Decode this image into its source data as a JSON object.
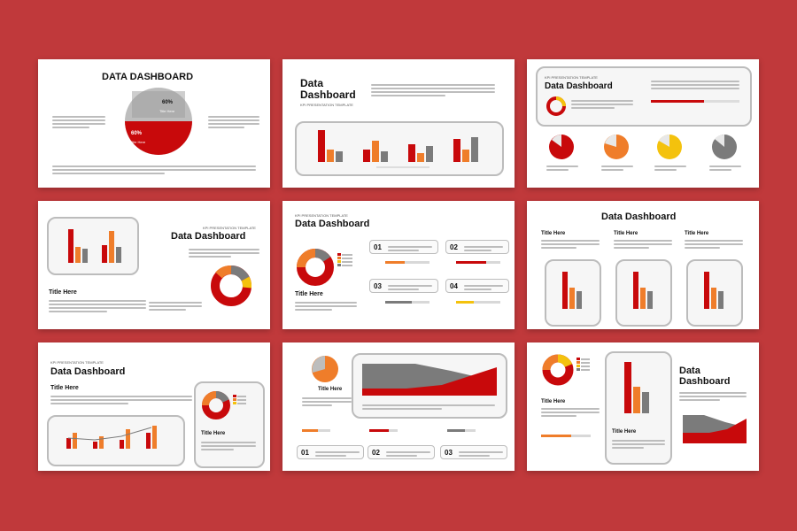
{
  "titles": {
    "s1": "DATA DASHBOARD",
    "s2_line1": "Data",
    "s2_line2": "Dashboard",
    "kpi": "KPI PRESENTATION TEMPLATE",
    "s3": "Data Dashboard",
    "s4": "Data Dashboard",
    "s5": "Data Dashboard",
    "s6": "Data Dashboard",
    "s7": "Data Dashboard",
    "s9_line1": "Data",
    "s9_line2": "Dashboard"
  },
  "labels": {
    "title_here": "Title Here",
    "pct60": "60%",
    "n01": "01",
    "n02": "02",
    "n03": "03",
    "n04": "04"
  },
  "colors": {
    "background": "#c0393b",
    "red": "#c8090b",
    "orange": "#ef7d2a",
    "yellow": "#f4c20d",
    "gray": "#7b7b7b"
  }
}
